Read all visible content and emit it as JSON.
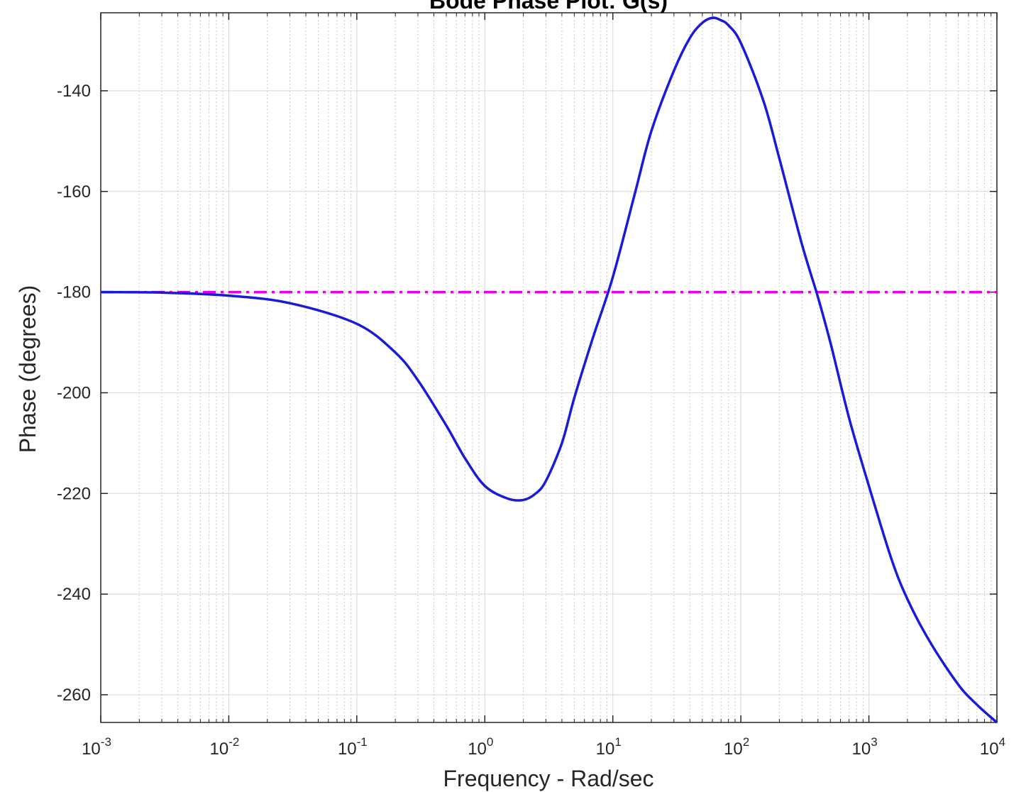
{
  "chart_data": {
    "type": "line",
    "title": "Bode Phase Plot: G(s)",
    "xlabel": "Frequency - Rad/sec",
    "ylabel": "Phase (degrees)",
    "xscale": "log",
    "xlim": [
      0.001,
      10000
    ],
    "ylim": [
      -265.5,
      -124.5
    ],
    "grid": true,
    "x_ticks": [
      {
        "base": "10",
        "exp": "-3"
      },
      {
        "base": "10",
        "exp": "-2"
      },
      {
        "base": "10",
        "exp": "-1"
      },
      {
        "base": "10",
        "exp": "0"
      },
      {
        "base": "10",
        "exp": "1"
      },
      {
        "base": "10",
        "exp": "2"
      },
      {
        "base": "10",
        "exp": "3"
      },
      {
        "base": "10",
        "exp": "4"
      }
    ],
    "y_ticks": [
      -140,
      -160,
      -180,
      -200,
      -220,
      -240,
      -260
    ],
    "series": [
      {
        "color": "#1a1adb",
        "style": "solid",
        "x": [
          0.001,
          0.003,
          0.01,
          0.03,
          0.1,
          0.2,
          0.3,
          0.5,
          0.7,
          1,
          1.5,
          2,
          2.5,
          3,
          4,
          5,
          7,
          10,
          15,
          20,
          30,
          40,
          50,
          60,
          70,
          80,
          100,
          150,
          200,
          300,
          400,
          500,
          700,
          1000,
          1500,
          2000,
          3000,
          5000,
          7000,
          10000
        ],
        "y": [
          -180.0,
          -180.1,
          -180.7,
          -182.2,
          -186.3,
          -192.0,
          -197.5,
          -206.5,
          -213.0,
          -218.5,
          -221.0,
          -221.3,
          -220.0,
          -217.5,
          -210.0,
          -201.0,
          -189.0,
          -177.0,
          -160.0,
          -148.0,
          -136.0,
          -129.5,
          -126.5,
          -125.5,
          -126.0,
          -127.0,
          -130.5,
          -142.0,
          -153.5,
          -170.5,
          -181.0,
          -190.0,
          -205.0,
          -218.5,
          -233.0,
          -241.0,
          -249.5,
          -258.0,
          -262.0,
          -265.5
        ]
      },
      {
        "color": "#e600e6",
        "style": "dash-dot",
        "x": [
          0.001,
          10000
        ],
        "y": [
          -180,
          -180
        ]
      }
    ]
  }
}
